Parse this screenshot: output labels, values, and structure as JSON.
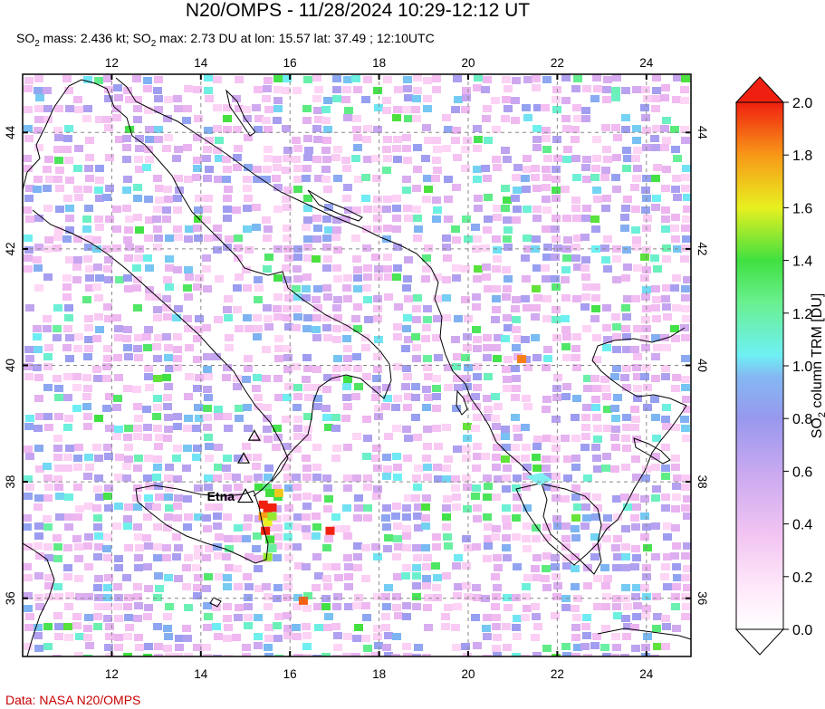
{
  "title": "N20/OMPS - 11/28/2024 10:29-12:12 UT",
  "subtitle": {
    "so2_label": "SO",
    "mass_text": " mass: 2.436 kt; SO",
    "max_text": " max: 2.73 DU at lon: 15.57 lat: 37.49 ; 12:10UTC",
    "sub2": "2"
  },
  "credit": "Data: NASA N20/OMPS",
  "map": {
    "lon_range": [
      10,
      25
    ],
    "lat_range": [
      35,
      45
    ],
    "lon_ticks": [
      "12",
      "14",
      "16",
      "18",
      "20",
      "22",
      "24"
    ],
    "lat_ticks": [
      "44",
      "42",
      "40",
      "38",
      "36"
    ],
    "volcano_label": "Etna",
    "volcanoes": [
      {
        "name": "Etna",
        "lon": 15.0,
        "lat": 37.75,
        "labeled": true
      },
      {
        "name": "Stromboli",
        "lon": 15.2,
        "lat": 38.79,
        "labeled": false
      },
      {
        "name": "Vulcano",
        "lon": 14.96,
        "lat": 38.4,
        "labeled": false
      }
    ],
    "hotspots": [
      {
        "lon": 15.4,
        "lat": 37.6,
        "du": 2.0
      },
      {
        "lon": 15.5,
        "lat": 37.5,
        "du": 2.0
      },
      {
        "lon": 15.6,
        "lat": 37.55,
        "du": 2.0
      },
      {
        "lon": 15.4,
        "lat": 37.4,
        "du": 1.8
      },
      {
        "lon": 15.5,
        "lat": 37.3,
        "du": 1.6
      },
      {
        "lon": 15.6,
        "lat": 37.4,
        "du": 1.5
      },
      {
        "lon": 15.45,
        "lat": 37.15,
        "du": 2.0
      },
      {
        "lon": 15.55,
        "lat": 37.0,
        "du": 1.4
      },
      {
        "lon": 15.6,
        "lat": 36.85,
        "du": 1.2
      },
      {
        "lon": 15.5,
        "lat": 36.7,
        "du": 1.5
      },
      {
        "lon": 15.75,
        "lat": 37.8,
        "du": 1.7
      },
      {
        "lon": 15.55,
        "lat": 37.8,
        "du": 1.4
      },
      {
        "lon": 16.9,
        "lat": 37.15,
        "du": 2.0
      },
      {
        "lon": 16.3,
        "lat": 35.95,
        "du": 1.9
      },
      {
        "lon": 21.2,
        "lat": 40.1,
        "du": 1.85
      }
    ]
  },
  "colorbar": {
    "label": "SO2 column TRM [DU]",
    "label_main": "SO",
    "label_sub": "2",
    "label_rest": " column TRM [DU]",
    "ticks": [
      "2.0",
      "1.8",
      "1.6",
      "1.4",
      "1.2",
      "1.0",
      "0.8",
      "0.6",
      "0.4",
      "0.2",
      "0.0"
    ],
    "colors": [
      "#ffffff",
      "#ffd0f4",
      "#e9b6f2",
      "#b99cee",
      "#8f9af0",
      "#72d0f4",
      "#74f4e0",
      "#64f06a",
      "#e8f020",
      "#f8b018",
      "#f84010",
      "#f00000"
    ]
  }
}
